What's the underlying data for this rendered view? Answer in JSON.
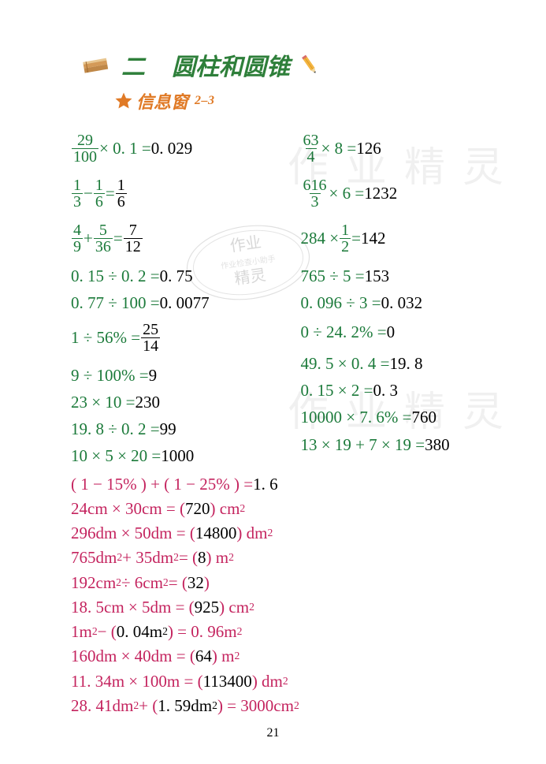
{
  "header": {
    "chapter_num": "二",
    "chapter_title": "圆柱和圆锥",
    "title_color": "#2e7f3a",
    "sub_prefix": "信息窗",
    "sub_suffix": "2–3",
    "sub_color": "#e07a26",
    "star_color": "#e07a26",
    "pencil_body": "#f4b642",
    "pencil_tip": "#e07a26",
    "book_color": "#d49a58"
  },
  "colors": {
    "green": "#1b7a3a",
    "black": "#000000",
    "magenta": "#c4235e"
  },
  "left": [
    {
      "c": "green",
      "tall": true,
      "parts": [
        {
          "t": "frac",
          "n": "29",
          "d": "100"
        },
        {
          "t": "txt",
          "v": " × 0. 1 = "
        },
        {
          "t": "ans",
          "v": "0. 029"
        }
      ]
    },
    {
      "c": "green",
      "tall": true,
      "parts": [
        {
          "t": "frac",
          "n": "1",
          "d": "3"
        },
        {
          "t": "txt",
          "v": " − "
        },
        {
          "t": "frac",
          "n": "1",
          "d": "6"
        },
        {
          "t": "txt",
          "v": " = "
        },
        {
          "t": "ansfrac",
          "n": "1",
          "d": "6"
        }
      ]
    },
    {
      "c": "green",
      "tall": true,
      "parts": [
        {
          "t": "frac",
          "n": "4",
          "d": "9"
        },
        {
          "t": "txt",
          "v": " + "
        },
        {
          "t": "frac",
          "n": "5",
          "d": "36"
        },
        {
          "t": "txt",
          "v": " = "
        },
        {
          "t": "ansfrac",
          "n": "7",
          "d": "12"
        }
      ]
    },
    {
      "c": "green",
      "parts": [
        {
          "t": "txt",
          "v": "0. 15 ÷ 0. 2 = "
        },
        {
          "t": "ans",
          "v": "0. 75"
        }
      ]
    },
    {
      "c": "green",
      "parts": [
        {
          "t": "txt",
          "v": "0. 77 ÷ 100 = "
        },
        {
          "t": "ans",
          "v": "0. 0077"
        }
      ]
    },
    {
      "c": "green",
      "tall": true,
      "parts": [
        {
          "t": "txt",
          "v": "1 ÷ 56%  = "
        },
        {
          "t": "ansfrac",
          "n": "25",
          "d": "14"
        }
      ]
    },
    {
      "c": "green",
      "parts": [
        {
          "t": "txt",
          "v": "9 ÷ 100%  = "
        },
        {
          "t": "ans",
          "v": "9"
        }
      ]
    },
    {
      "c": "green",
      "parts": [
        {
          "t": "txt",
          "v": "23 × 10 = "
        },
        {
          "t": "ans",
          "v": "230"
        }
      ]
    },
    {
      "c": "green",
      "parts": [
        {
          "t": "txt",
          "v": "19. 8 ÷ 0. 2 = "
        },
        {
          "t": "ans",
          "v": "99"
        }
      ]
    },
    {
      "c": "green",
      "parts": [
        {
          "t": "txt",
          "v": "10 × 5 × 20 = "
        },
        {
          "t": "ans",
          "v": "1000"
        }
      ]
    }
  ],
  "right": [
    {
      "c": "green",
      "tall": true,
      "parts": [
        {
          "t": "frac",
          "n": "63",
          "d": "4"
        },
        {
          "t": "txt",
          "v": " × 8 = "
        },
        {
          "t": "ans",
          "v": "126"
        }
      ]
    },
    {
      "c": "green",
      "tall": true,
      "parts": [
        {
          "t": "frac",
          "n": "616",
          "d": "3"
        },
        {
          "t": "txt",
          "v": " × 6 = "
        },
        {
          "t": "ans",
          "v": "1232"
        }
      ]
    },
    {
      "c": "green",
      "tall": true,
      "parts": [
        {
          "t": "txt",
          "v": "284 × "
        },
        {
          "t": "frac",
          "n": "1",
          "d": "2"
        },
        {
          "t": "txt",
          "v": " = "
        },
        {
          "t": "ans",
          "v": "142"
        }
      ]
    },
    {
      "c": "green",
      "parts": [
        {
          "t": "txt",
          "v": "765 ÷ 5 = "
        },
        {
          "t": "ans",
          "v": "153"
        }
      ]
    },
    {
      "c": "green",
      "parts": [
        {
          "t": "txt",
          "v": "0. 096 ÷ 3 = "
        },
        {
          "t": "ans",
          "v": "0. 032"
        }
      ]
    },
    {
      "c": "green",
      "tall": true,
      "parts": [
        {
          "t": "txt",
          "v": "0 ÷ 24. 2%  = "
        },
        {
          "t": "ans",
          "v": "0"
        }
      ]
    },
    {
      "c": "green",
      "parts": [
        {
          "t": "txt",
          "v": "49. 5 × 0. 4 = "
        },
        {
          "t": "ans",
          "v": "19. 8"
        }
      ]
    },
    {
      "c": "green",
      "parts": [
        {
          "t": "txt",
          "v": "0. 15 × 2 = "
        },
        {
          "t": "ans",
          "v": "0. 3"
        }
      ]
    },
    {
      "c": "green",
      "parts": [
        {
          "t": "txt",
          "v": "10000 × 7. 6%  = "
        },
        {
          "t": "ans",
          "v": "760"
        }
      ]
    },
    {
      "c": "green",
      "parts": [
        {
          "t": "txt",
          "v": "13 × 19 + 7 × 19 = "
        },
        {
          "t": "ans",
          "v": "380"
        }
      ]
    }
  ],
  "full": [
    {
      "c": "magenta",
      "parts": [
        {
          "t": "txt",
          "v": "( 1 − 15% ) + ( 1 − 25% ) = "
        },
        {
          "t": "ans",
          "v": "1. 6"
        }
      ]
    },
    {
      "c": "magenta",
      "parts": [
        {
          "t": "txt",
          "v": "24cm × 30cm = ( "
        },
        {
          "t": "ans",
          "v": "720"
        },
        {
          "t": "txt",
          "v": " ) cm"
        },
        {
          "t": "sup",
          "v": "2"
        }
      ]
    },
    {
      "c": "magenta",
      "parts": [
        {
          "t": "txt",
          "v": "296dm × 50dm = ( "
        },
        {
          "t": "ans",
          "v": "14800"
        },
        {
          "t": "txt",
          "v": " ) dm"
        },
        {
          "t": "sup",
          "v": "2"
        }
      ]
    },
    {
      "c": "magenta",
      "parts": [
        {
          "t": "txt",
          "v": "765dm"
        },
        {
          "t": "sup",
          "v": "2"
        },
        {
          "t": "txt",
          "v": " + 35dm"
        },
        {
          "t": "sup",
          "v": "2"
        },
        {
          "t": "txt",
          "v": " = (   "
        },
        {
          "t": "ans",
          "v": "8"
        },
        {
          "t": "txt",
          "v": "   ) m"
        },
        {
          "t": "sup",
          "v": "2"
        }
      ]
    },
    {
      "c": "magenta",
      "parts": [
        {
          "t": "txt",
          "v": "192cm"
        },
        {
          "t": "sup",
          "v": "2"
        },
        {
          "t": "txt",
          "v": " ÷ 6cm"
        },
        {
          "t": "sup",
          "v": "2"
        },
        {
          "t": "txt",
          "v": " = (  "
        },
        {
          "t": "ans",
          "v": "32"
        },
        {
          "t": "txt",
          "v": "  )"
        }
      ]
    },
    {
      "c": "magenta",
      "parts": [
        {
          "t": "txt",
          "v": "18. 5cm × 5dm = ( "
        },
        {
          "t": "ans",
          "v": "925"
        },
        {
          "t": "txt",
          "v": " ) cm"
        },
        {
          "t": "sup",
          "v": "2"
        }
      ]
    },
    {
      "c": "magenta",
      "parts": [
        {
          "t": "txt",
          "v": "1m"
        },
        {
          "t": "sup",
          "v": "2"
        },
        {
          "t": "txt",
          "v": " − ( "
        },
        {
          "t": "ans",
          "v": "0. 04m"
        },
        {
          "t": "anssup",
          "v": "2"
        },
        {
          "t": "txt",
          "v": " ) = 0. 96m"
        },
        {
          "t": "sup",
          "v": "2"
        }
      ]
    },
    {
      "c": "magenta",
      "parts": [
        {
          "t": "txt",
          "v": "160dm × 40dm = (  "
        },
        {
          "t": "ans",
          "v": "64"
        },
        {
          "t": "txt",
          "v": "  ) m"
        },
        {
          "t": "sup",
          "v": "2"
        }
      ]
    },
    {
      "c": "magenta",
      "parts": [
        {
          "t": "txt",
          "v": "11. 34m × 100m = ( "
        },
        {
          "t": "ans",
          "v": "113400"
        },
        {
          "t": "txt",
          "v": " ) dm"
        },
        {
          "t": "sup",
          "v": "2"
        }
      ]
    },
    {
      "c": "magenta",
      "parts": [
        {
          "t": "txt",
          "v": "28. 41dm"
        },
        {
          "t": "sup",
          "v": "2"
        },
        {
          "t": "txt",
          "v": " + ( "
        },
        {
          "t": "ans",
          "v": "1. 59dm"
        },
        {
          "t": "anssup",
          "v": "2"
        },
        {
          "t": "txt",
          "v": " ) = 3000cm"
        },
        {
          "t": "sup",
          "v": "2"
        }
      ]
    }
  ],
  "page_number": "21",
  "watermark_text": "作业精灵",
  "stamp": {
    "line1": "作业",
    "line2": "作业检查小助手",
    "line3": "精灵"
  }
}
